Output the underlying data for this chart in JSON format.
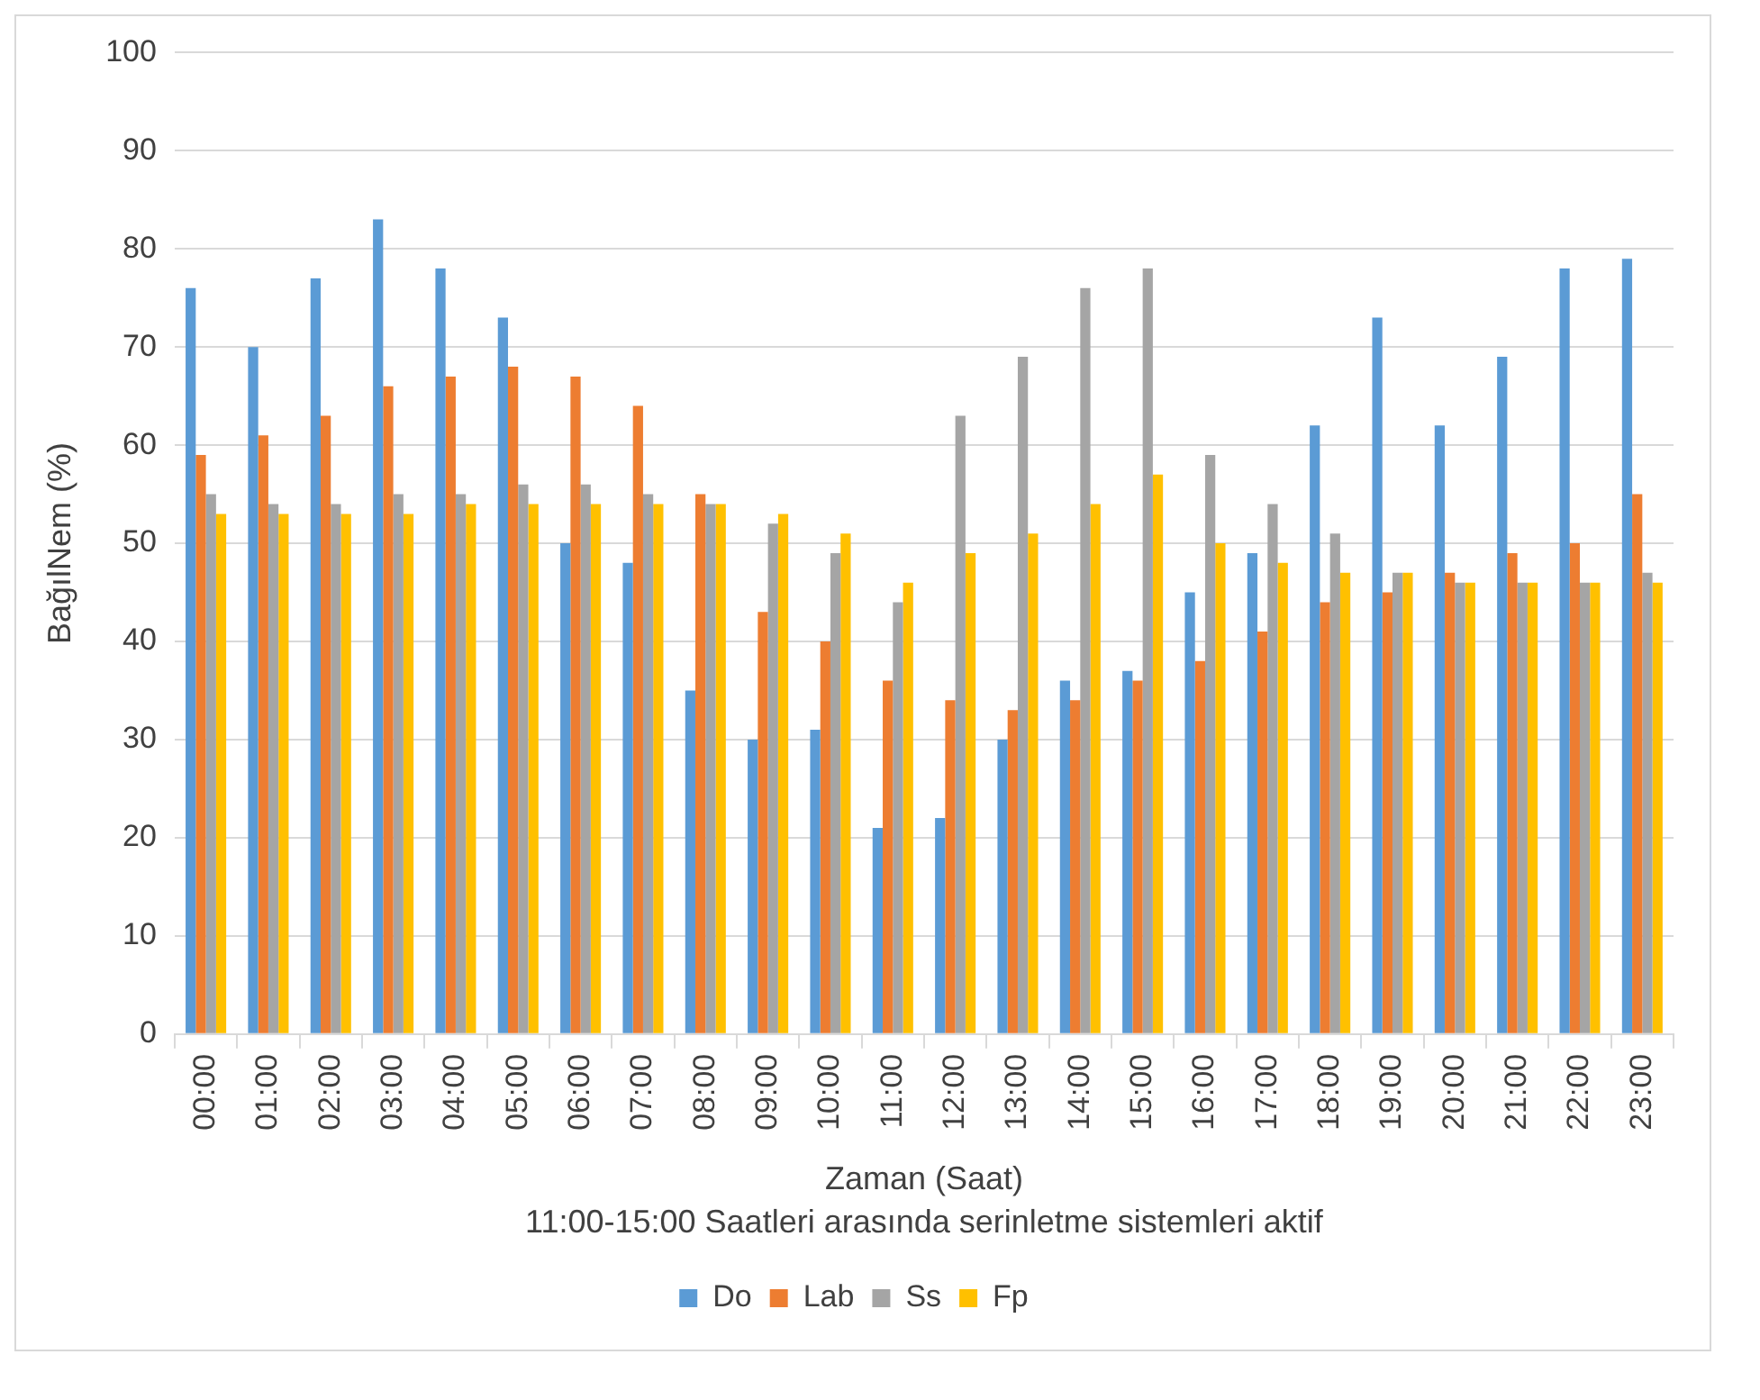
{
  "chart_data": {
    "type": "bar",
    "xlabel": "Zaman (Saat)",
    "ylabel": "BağılNem (%)",
    "annotations": [
      "11:00-15:00 Saatleri arasında serinletme sistemleri aktif"
    ],
    "categories": [
      "00:00",
      "01:00",
      "02:00",
      "03:00",
      "04:00",
      "05:00",
      "06:00",
      "07:00",
      "08:00",
      "09:00",
      "10:00",
      "11:00",
      "12:00",
      "13:00",
      "14:00",
      "15:00",
      "16:00",
      "17:00",
      "18:00",
      "19:00",
      "20:00",
      "21:00",
      "22:00",
      "23:00"
    ],
    "series": [
      {
        "name": "Do",
        "color": "#5b9bd5",
        "values": [
          76,
          70,
          77,
          83,
          78,
          73,
          50,
          48,
          35,
          30,
          31,
          21,
          22,
          30,
          36,
          37,
          45,
          49,
          62,
          73,
          62,
          69,
          78,
          79
        ]
      },
      {
        "name": "Lab",
        "color": "#ed7d31",
        "values": [
          59,
          61,
          63,
          66,
          67,
          68,
          67,
          64,
          55,
          43,
          40,
          36,
          34,
          33,
          34,
          36,
          38,
          41,
          44,
          45,
          47,
          49,
          50,
          55
        ]
      },
      {
        "name": "Ss",
        "color": "#a5a5a5",
        "values": [
          55,
          54,
          54,
          55,
          55,
          56,
          56,
          55,
          54,
          52,
          49,
          44,
          63,
          69,
          76,
          78,
          59,
          54,
          51,
          47,
          46,
          46,
          46,
          47
        ]
      },
      {
        "name": "Fp",
        "color": "#ffc000",
        "values": [
          53,
          53,
          53,
          53,
          54,
          54,
          54,
          54,
          54,
          53,
          51,
          46,
          49,
          51,
          54,
          57,
          50,
          48,
          47,
          47,
          46,
          46,
          46,
          46
        ]
      }
    ],
    "ylim": [
      0,
      100
    ],
    "yticks": [
      0,
      10,
      20,
      30,
      40,
      50,
      60,
      70,
      80,
      90,
      100
    ],
    "grid": "y",
    "legend": "bottom"
  }
}
